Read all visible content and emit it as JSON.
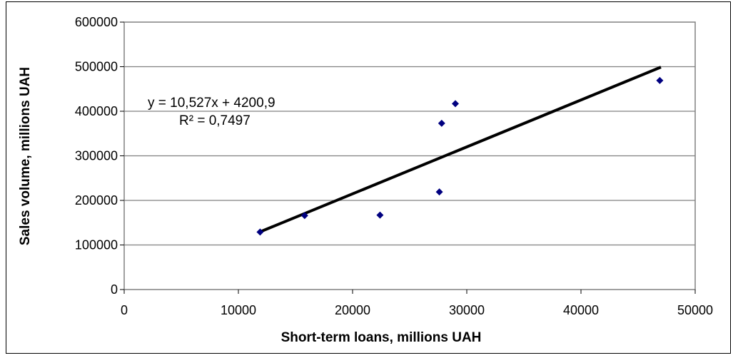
{
  "chart_data": {
    "type": "scatter",
    "title": "",
    "xlabel": "Short-term loans, millions UAH",
    "ylabel": "Sales  volume,  millions UAH",
    "xlim": [
      0,
      50000
    ],
    "ylim": [
      0,
      600000
    ],
    "x_ticks": [
      "0",
      "10000",
      "20000",
      "30000",
      "40000",
      "50000"
    ],
    "y_ticks": [
      "0",
      "100000",
      "200000",
      "300000",
      "400000",
      "500000",
      "600000"
    ],
    "x_tick_values": [
      0,
      10000,
      20000,
      30000,
      40000,
      50000
    ],
    "y_tick_values": [
      0,
      100000,
      200000,
      300000,
      400000,
      500000,
      600000
    ],
    "grid": "horizontal",
    "series": [
      {
        "points": [
          {
            "x": 11900,
            "y": 129000
          },
          {
            "x": 15800,
            "y": 166000
          },
          {
            "x": 22400,
            "y": 167000
          },
          {
            "x": 27600,
            "y": 219000
          },
          {
            "x": 27800,
            "y": 373000
          },
          {
            "x": 29000,
            "y": 417000
          },
          {
            "x": 46900,
            "y": 469000
          }
        ],
        "marker": "diamond",
        "color": "#000080"
      }
    ],
    "trendline": {
      "type": "linear",
      "slope": 10.527,
      "intercept": 4200.9,
      "x_range": [
        11900,
        47000
      ],
      "color": "#000000",
      "equation_text": "y = 10,527x + 4200,9",
      "r2_text": "R² = 0,7497"
    }
  }
}
